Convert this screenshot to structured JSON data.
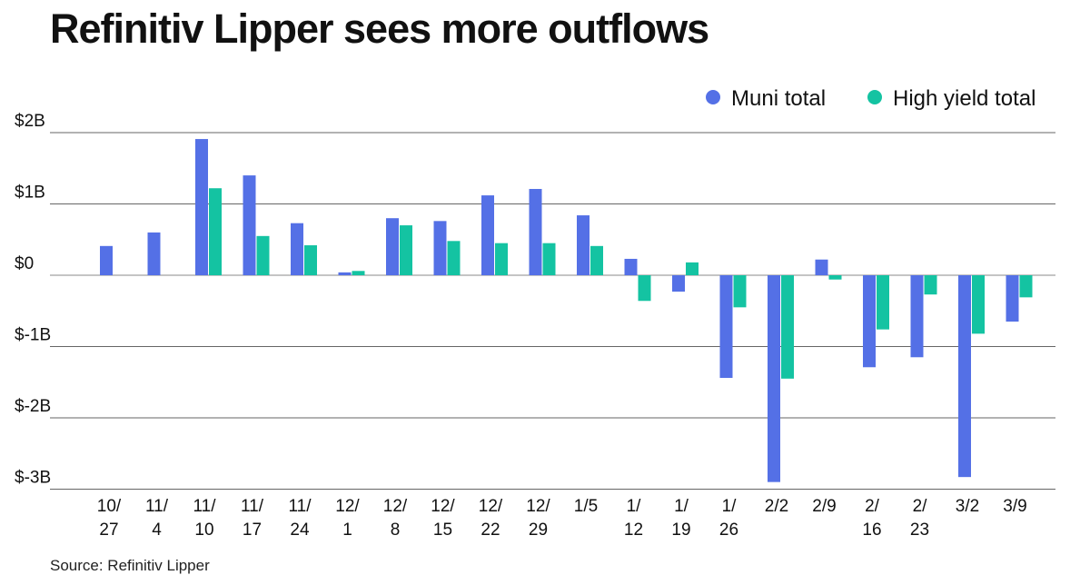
{
  "chart_data": {
    "type": "bar",
    "title": "Refinitiv Lipper sees more outflows",
    "source": "Source: Refinitiv Lipper",
    "xlabel": "",
    "ylabel": "",
    "ylim": [
      -3,
      2
    ],
    "yticks": [
      2,
      1,
      0,
      -1,
      -2,
      -3
    ],
    "ytick_labels": [
      "$2B",
      "$1B",
      "$0",
      "$-1B",
      "$-2B",
      "$-3B"
    ],
    "legend_position": "top-right",
    "categories": [
      "10/\n27",
      "11/\n4",
      "11/\n10",
      "11/\n17",
      "11/\n24",
      "12/\n1",
      "12/\n8",
      "12/\n15",
      "12/\n22",
      "12/\n29",
      "1/5",
      "1/\n12",
      "1/\n19",
      "1/\n26",
      "2/2",
      "2/9",
      "2/\n16",
      "2/\n23",
      "3/2",
      "3/9"
    ],
    "series": [
      {
        "name": "Muni total",
        "color": "#5470e6",
        "values": [
          0.41,
          0.6,
          1.91,
          1.4,
          0.73,
          0.04,
          0.8,
          0.76,
          1.12,
          1.21,
          0.84,
          0.23,
          -0.23,
          -1.44,
          -2.9,
          0.22,
          -1.29,
          -1.15,
          -2.83,
          -0.65
        ]
      },
      {
        "name": "High yield total",
        "color": "#14c3a2",
        "values": [
          0,
          0,
          1.22,
          0.55,
          0.42,
          0.06,
          0.7,
          0.48,
          0.45,
          0.45,
          0.41,
          -0.36,
          0.18,
          -0.45,
          -1.45,
          -0.06,
          -0.76,
          -0.27,
          -0.82,
          -0.31
        ]
      }
    ]
  }
}
